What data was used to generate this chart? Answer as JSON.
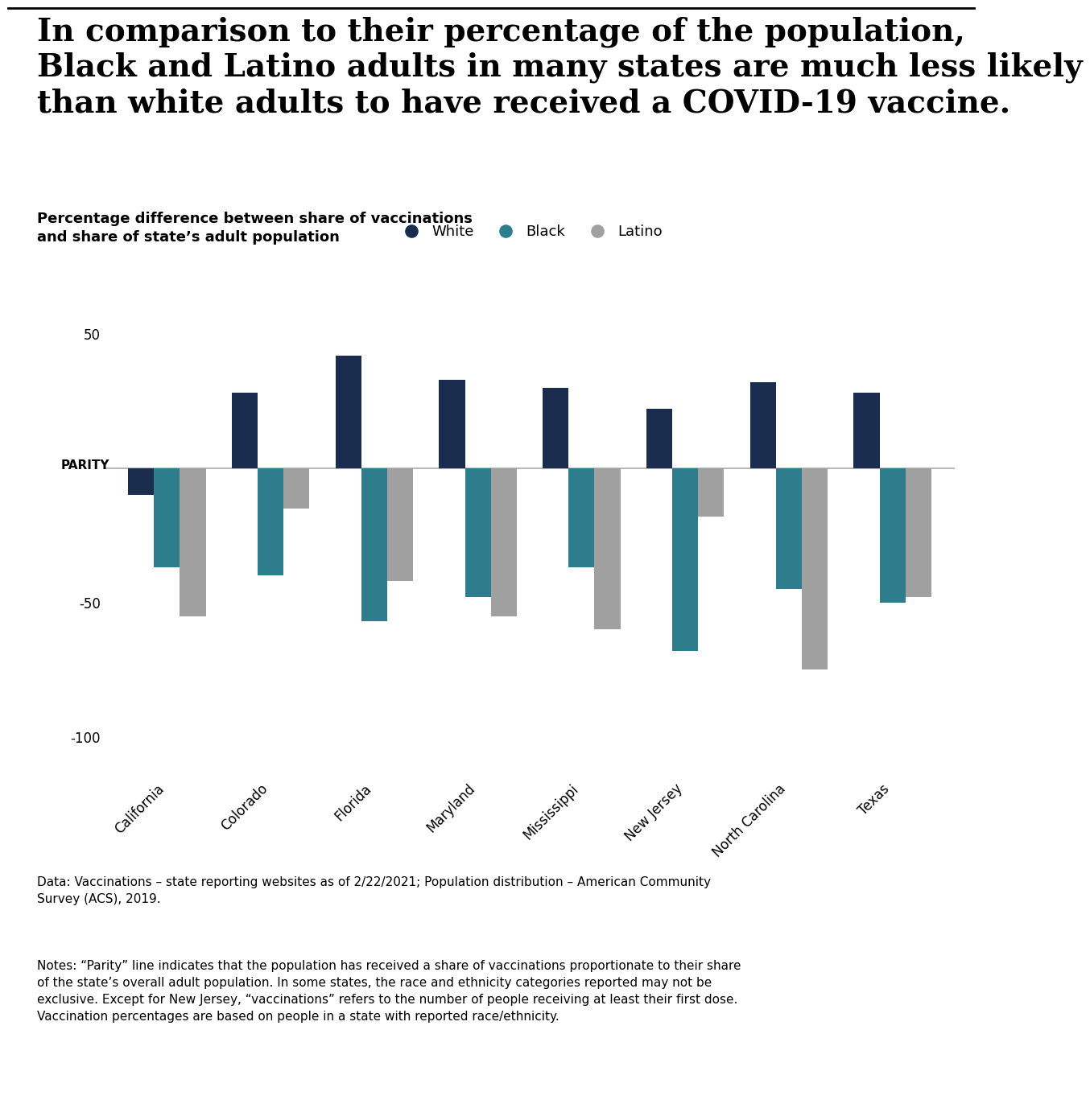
{
  "title_main": "In comparison to their percentage of the population,\nBlack and Latino adults in many states are much less likely\nthan white adults to have received a COVID-19 vaccine.",
  "subtitle": "Percentage difference between share of vaccinations\nand share of state’s adult population",
  "states": [
    "California",
    "Colorado",
    "Florida",
    "Maryland",
    "Mississippi",
    "New Jersey",
    "North Carolina",
    "Texas"
  ],
  "white": [
    -10,
    28,
    42,
    33,
    30,
    22,
    32,
    28
  ],
  "black": [
    -37,
    -40,
    -57,
    -48,
    -37,
    -68,
    -45,
    -50
  ],
  "latino": [
    -55,
    -15,
    -42,
    -55,
    -60,
    -18,
    -75,
    -48
  ],
  "color_white": "#1b2d4f",
  "color_black": "#2e7d8c",
  "color_latino": "#a0a0a0",
  "legend_labels": [
    "White",
    "Black",
    "Latino"
  ],
  "parity_label": "PARITY",
  "yticks": [
    -100,
    -50,
    0,
    50
  ],
  "ylim": [
    -115,
    65
  ],
  "bar_width": 0.25,
  "data_note": "Data: Vaccinations – state reporting websites as of 2/22/2021; Population distribution – American Community\nSurvey (ACS), 2019.",
  "notes_text": "Notes: “Parity” line indicates that the population has received a share of vaccinations proportionate to their share\nof the state’s overall adult population. In some states, the race and ethnicity categories reported may not be\nexclusive. Except for New Jersey, “vaccinations” refers to the number of people receiving at least their first dose.\nVaccination percentages are based on people in a state with reported race/ethnicity.",
  "background_color": "#ffffff"
}
